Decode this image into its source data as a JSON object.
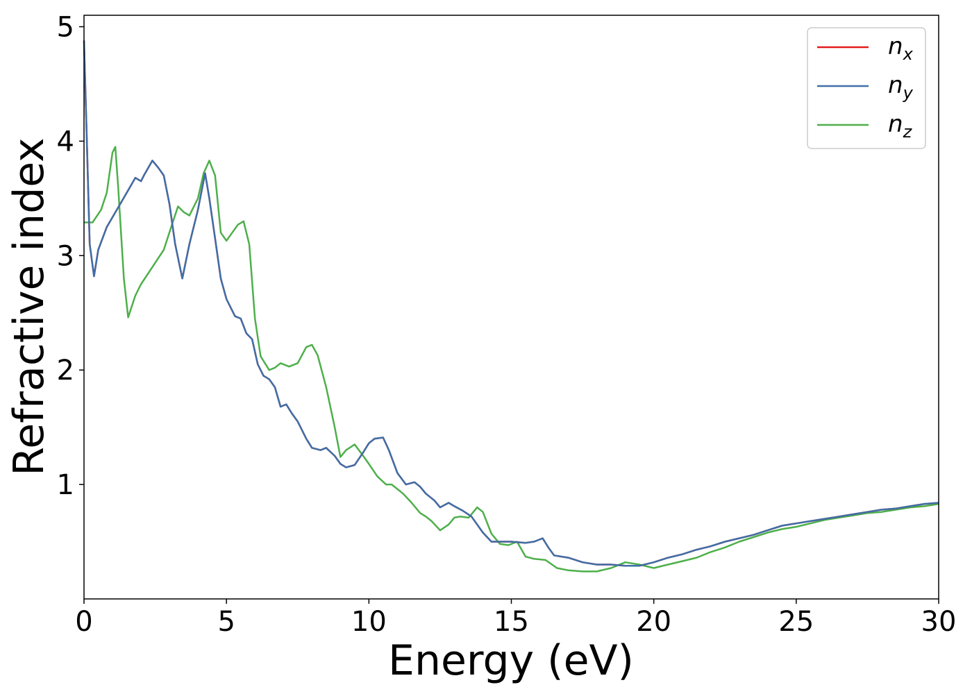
{
  "chart_data": {
    "type": "line",
    "title": "",
    "xlabel": "Energy (eV)",
    "ylabel": "Refractive index",
    "xlim": [
      0,
      30
    ],
    "ylim": [
      0,
      5.1
    ],
    "xticks": [
      0,
      5,
      10,
      15,
      20,
      25,
      30
    ],
    "yticks": [
      1,
      2,
      3,
      4,
      5
    ],
    "grid": false,
    "legend_position": "top-right",
    "series": [
      {
        "name": "n_x",
        "label_base": "n",
        "label_sub": "x",
        "color": "#e41a1c",
        "x": [
          0,
          0.1,
          0.2,
          0.35,
          0.5,
          0.8,
          1.2,
          1.5,
          1.8,
          2.0,
          2.1,
          2.4,
          2.6,
          2.8,
          3.0,
          3.2,
          3.45,
          3.7,
          4.0,
          4.25,
          4.4,
          4.6,
          4.8,
          5.0,
          5.3,
          5.5,
          5.7,
          5.9,
          6.1,
          6.3,
          6.5,
          6.7,
          6.9,
          7.1,
          7.3,
          7.5,
          7.8,
          8.0,
          8.3,
          8.5,
          8.8,
          9.0,
          9.2,
          9.5,
          9.8,
          10.0,
          10.2,
          10.5,
          10.7,
          11.0,
          11.3,
          11.6,
          11.8,
          12.0,
          12.3,
          12.5,
          12.8,
          13.0,
          13.3,
          13.6,
          13.8,
          14.0,
          14.3,
          14.6,
          15.0,
          15.5,
          15.8,
          16.1,
          16.3,
          16.5,
          17.0,
          17.5,
          18.0,
          18.5,
          19.0,
          19.5,
          20.0,
          20.5,
          21.0,
          21.5,
          22.0,
          22.5,
          23.0,
          23.5,
          24.0,
          24.5,
          25.0,
          25.5,
          26.0,
          26.5,
          27.0,
          27.5,
          28.0,
          28.5,
          29.0,
          29.5,
          30.0
        ],
        "y": [
          4.88,
          4.0,
          3.1,
          2.82,
          3.05,
          3.25,
          3.42,
          3.55,
          3.68,
          3.65,
          3.7,
          3.83,
          3.77,
          3.7,
          3.45,
          3.1,
          2.8,
          3.1,
          3.4,
          3.72,
          3.5,
          3.15,
          2.8,
          2.62,
          2.47,
          2.45,
          2.32,
          2.27,
          2.05,
          1.95,
          1.92,
          1.85,
          1.68,
          1.7,
          1.62,
          1.55,
          1.4,
          1.32,
          1.3,
          1.32,
          1.25,
          1.18,
          1.15,
          1.17,
          1.28,
          1.36,
          1.4,
          1.41,
          1.3,
          1.1,
          1.0,
          1.02,
          0.98,
          0.92,
          0.86,
          0.8,
          0.84,
          0.81,
          0.77,
          0.72,
          0.65,
          0.58,
          0.5,
          0.5,
          0.5,
          0.49,
          0.5,
          0.53,
          0.45,
          0.38,
          0.36,
          0.32,
          0.3,
          0.3,
          0.29,
          0.29,
          0.32,
          0.36,
          0.39,
          0.43,
          0.46,
          0.5,
          0.53,
          0.56,
          0.6,
          0.64,
          0.66,
          0.68,
          0.7,
          0.72,
          0.74,
          0.76,
          0.78,
          0.79,
          0.81,
          0.83,
          0.84
        ]
      },
      {
        "name": "n_y",
        "label_base": "n",
        "label_sub": "y",
        "color": "#3e6fa8",
        "x": [
          0,
          0.1,
          0.2,
          0.35,
          0.5,
          0.8,
          1.2,
          1.5,
          1.8,
          2.0,
          2.1,
          2.4,
          2.6,
          2.8,
          3.0,
          3.2,
          3.45,
          3.7,
          4.0,
          4.25,
          4.4,
          4.6,
          4.8,
          5.0,
          5.3,
          5.5,
          5.7,
          5.9,
          6.1,
          6.3,
          6.5,
          6.7,
          6.9,
          7.1,
          7.3,
          7.5,
          7.8,
          8.0,
          8.3,
          8.5,
          8.8,
          9.0,
          9.2,
          9.5,
          9.8,
          10.0,
          10.2,
          10.5,
          10.7,
          11.0,
          11.3,
          11.6,
          11.8,
          12.0,
          12.3,
          12.5,
          12.8,
          13.0,
          13.3,
          13.6,
          13.8,
          14.0,
          14.3,
          14.6,
          15.0,
          15.5,
          15.8,
          16.1,
          16.3,
          16.5,
          17.0,
          17.5,
          18.0,
          18.5,
          19.0,
          19.5,
          20.0,
          20.5,
          21.0,
          21.5,
          22.0,
          22.5,
          23.0,
          23.5,
          24.0,
          24.5,
          25.0,
          25.5,
          26.0,
          26.5,
          27.0,
          27.5,
          28.0,
          28.5,
          29.0,
          29.5,
          30.0
        ],
        "y": [
          4.88,
          4.0,
          3.1,
          2.82,
          3.05,
          3.25,
          3.42,
          3.55,
          3.68,
          3.65,
          3.7,
          3.83,
          3.77,
          3.7,
          3.45,
          3.1,
          2.8,
          3.1,
          3.4,
          3.72,
          3.5,
          3.15,
          2.8,
          2.62,
          2.47,
          2.45,
          2.32,
          2.27,
          2.05,
          1.95,
          1.92,
          1.85,
          1.68,
          1.7,
          1.62,
          1.55,
          1.4,
          1.32,
          1.3,
          1.32,
          1.25,
          1.18,
          1.15,
          1.17,
          1.28,
          1.36,
          1.4,
          1.41,
          1.3,
          1.1,
          1.0,
          1.02,
          0.98,
          0.92,
          0.86,
          0.8,
          0.84,
          0.81,
          0.77,
          0.72,
          0.65,
          0.58,
          0.5,
          0.5,
          0.5,
          0.49,
          0.5,
          0.53,
          0.45,
          0.38,
          0.36,
          0.32,
          0.3,
          0.3,
          0.29,
          0.29,
          0.32,
          0.36,
          0.39,
          0.43,
          0.46,
          0.5,
          0.53,
          0.56,
          0.6,
          0.64,
          0.66,
          0.68,
          0.7,
          0.72,
          0.74,
          0.76,
          0.78,
          0.79,
          0.81,
          0.83,
          0.84
        ]
      },
      {
        "name": "n_z",
        "label_base": "n",
        "label_sub": "z",
        "color": "#4daf4a",
        "x": [
          0,
          0.3,
          0.6,
          0.8,
          1.0,
          1.1,
          1.2,
          1.4,
          1.55,
          1.8,
          2.0,
          2.4,
          2.8,
          3.1,
          3.3,
          3.5,
          3.7,
          4.0,
          4.2,
          4.4,
          4.6,
          4.8,
          5.0,
          5.2,
          5.4,
          5.6,
          5.8,
          6.0,
          6.2,
          6.5,
          6.7,
          6.9,
          7.2,
          7.5,
          7.8,
          8.0,
          8.2,
          8.5,
          8.8,
          9.0,
          9.2,
          9.5,
          9.8,
          10.0,
          10.3,
          10.6,
          10.8,
          11.2,
          11.5,
          11.8,
          12.0,
          12.2,
          12.5,
          12.8,
          13.0,
          13.2,
          13.5,
          13.8,
          14.0,
          14.3,
          14.6,
          14.9,
          15.2,
          15.5,
          15.8,
          16.2,
          16.6,
          17.0,
          17.5,
          18.0,
          18.5,
          19.0,
          19.5,
          20.0,
          20.5,
          21.0,
          21.5,
          22.0,
          22.5,
          23.0,
          23.5,
          24.0,
          24.5,
          25.0,
          25.5,
          26.0,
          26.5,
          27.0,
          27.5,
          28.0,
          28.5,
          29.0,
          29.5,
          30.0
        ],
        "y": [
          3.29,
          3.29,
          3.4,
          3.55,
          3.9,
          3.95,
          3.6,
          2.8,
          2.46,
          2.65,
          2.75,
          2.9,
          3.05,
          3.28,
          3.43,
          3.38,
          3.35,
          3.5,
          3.72,
          3.83,
          3.7,
          3.2,
          3.13,
          3.2,
          3.27,
          3.3,
          3.1,
          2.45,
          2.12,
          2.0,
          2.02,
          2.06,
          2.03,
          2.06,
          2.2,
          2.22,
          2.13,
          1.85,
          1.5,
          1.24,
          1.3,
          1.35,
          1.25,
          1.18,
          1.07,
          1.0,
          1.0,
          0.92,
          0.84,
          0.75,
          0.72,
          0.68,
          0.6,
          0.65,
          0.71,
          0.72,
          0.71,
          0.8,
          0.76,
          0.57,
          0.48,
          0.47,
          0.5,
          0.37,
          0.35,
          0.34,
          0.27,
          0.25,
          0.24,
          0.24,
          0.27,
          0.32,
          0.3,
          0.27,
          0.3,
          0.33,
          0.36,
          0.41,
          0.45,
          0.5,
          0.54,
          0.58,
          0.61,
          0.63,
          0.66,
          0.69,
          0.71,
          0.73,
          0.75,
          0.76,
          0.78,
          0.8,
          0.81,
          0.83
        ]
      }
    ]
  }
}
